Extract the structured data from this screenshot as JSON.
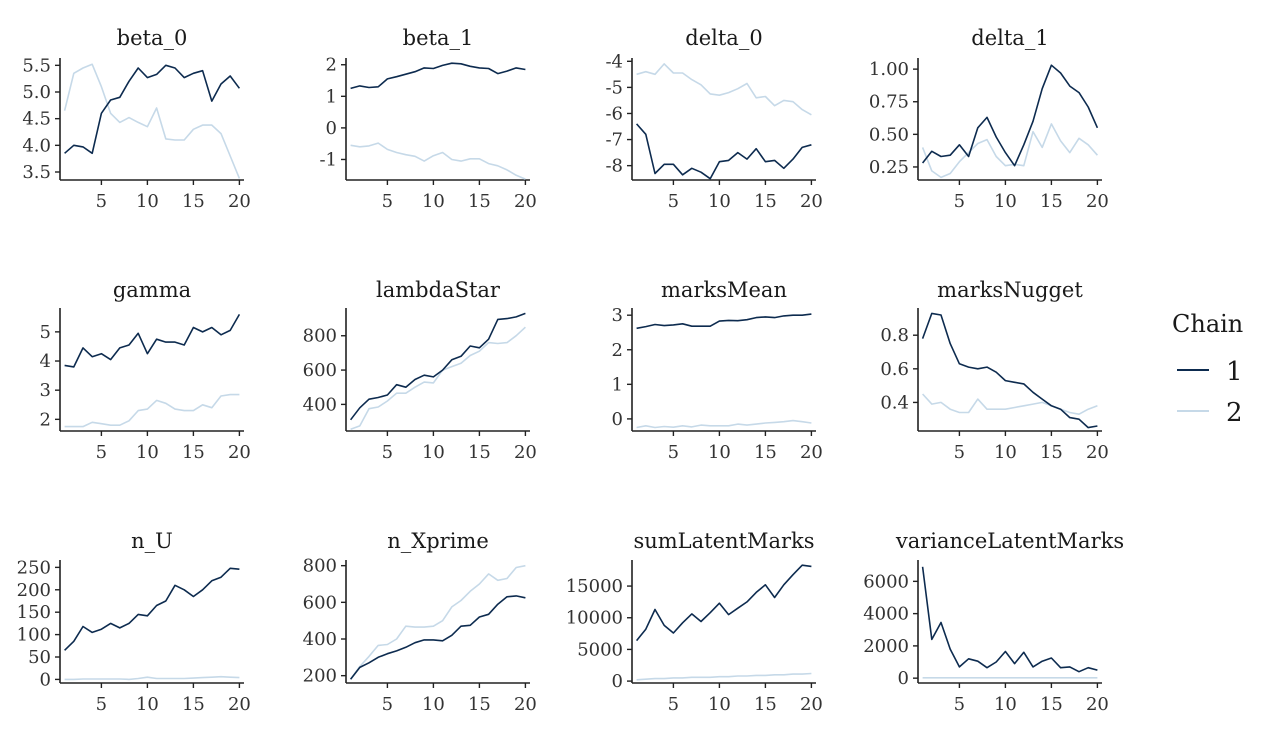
{
  "legend": {
    "title": "Chain",
    "items": [
      {
        "label": "1",
        "color": "#0d2b4f"
      },
      {
        "label": "2",
        "color": "#c6d9e8"
      }
    ]
  },
  "chart_data": [
    {
      "type": "line",
      "title": "beta_0",
      "x": [
        1,
        2,
        3,
        4,
        5,
        6,
        7,
        8,
        9,
        10,
        11,
        12,
        13,
        14,
        15,
        16,
        17,
        18,
        19,
        20
      ],
      "xticks": [
        5,
        10,
        15,
        20
      ],
      "xlim": [
        0.5,
        20.5
      ],
      "yticks": [
        3.5,
        4.0,
        4.5,
        5.0,
        5.5
      ],
      "ytick_labels": [
        "3.5",
        "4.0",
        "4.5",
        "5.0",
        "5.5"
      ],
      "ylim": [
        3.35,
        5.6
      ],
      "series": [
        {
          "name": "1",
          "values": [
            3.85,
            4.0,
            3.97,
            3.85,
            4.6,
            4.85,
            4.9,
            5.2,
            5.45,
            5.27,
            5.33,
            5.5,
            5.45,
            5.27,
            5.35,
            5.4,
            4.83,
            5.15,
            5.3,
            5.07
          ]
        },
        {
          "name": "2",
          "values": [
            4.65,
            5.35,
            5.45,
            5.52,
            5.1,
            4.6,
            4.43,
            4.52,
            4.43,
            4.35,
            4.7,
            4.12,
            4.1,
            4.1,
            4.3,
            4.38,
            4.38,
            4.22,
            3.8,
            3.38
          ]
        }
      ]
    },
    {
      "type": "line",
      "title": "beta_1",
      "x": [
        1,
        2,
        3,
        4,
        5,
        6,
        7,
        8,
        9,
        10,
        11,
        12,
        13,
        14,
        15,
        16,
        17,
        18,
        19,
        20
      ],
      "xticks": [
        5,
        10,
        15,
        20
      ],
      "xlim": [
        0.5,
        20.5
      ],
      "yticks": [
        -1,
        0,
        1,
        2
      ],
      "ytick_labels": [
        "-1",
        "0",
        "1",
        "2"
      ],
      "ylim": [
        -1.65,
        2.15
      ],
      "series": [
        {
          "name": "1",
          "values": [
            1.25,
            1.33,
            1.28,
            1.3,
            1.55,
            1.62,
            1.7,
            1.78,
            1.9,
            1.88,
            1.98,
            2.05,
            2.03,
            1.95,
            1.9,
            1.88,
            1.72,
            1.8,
            1.9,
            1.85
          ]
        },
        {
          "name": "2",
          "values": [
            -0.55,
            -0.6,
            -0.57,
            -0.48,
            -0.68,
            -0.78,
            -0.85,
            -0.9,
            -1.05,
            -0.88,
            -0.78,
            -1.0,
            -1.05,
            -0.98,
            -0.98,
            -1.13,
            -1.2,
            -1.33,
            -1.5,
            -1.62
          ]
        }
      ]
    },
    {
      "type": "line",
      "title": "delta_0",
      "x": [
        1,
        2,
        3,
        4,
        5,
        6,
        7,
        8,
        9,
        10,
        11,
        12,
        13,
        14,
        15,
        16,
        17,
        18,
        19,
        20
      ],
      "xticks": [
        5,
        10,
        15,
        20
      ],
      "xlim": [
        0.5,
        20.5
      ],
      "yticks": [
        -8,
        -7,
        -6,
        -5,
        -4
      ],
      "ytick_labels": [
        "-8",
        "-7",
        "-6",
        "-5",
        "-4"
      ],
      "ylim": [
        -8.55,
        -3.95
      ],
      "series": [
        {
          "name": "1",
          "values": [
            -6.4,
            -6.8,
            -8.3,
            -7.95,
            -7.95,
            -8.35,
            -8.1,
            -8.25,
            -8.5,
            -7.85,
            -7.8,
            -7.5,
            -7.75,
            -7.35,
            -7.85,
            -7.8,
            -8.1,
            -7.75,
            -7.3,
            -7.2
          ]
        },
        {
          "name": "2",
          "values": [
            -4.5,
            -4.4,
            -4.5,
            -4.1,
            -4.45,
            -4.45,
            -4.7,
            -4.9,
            -5.25,
            -5.3,
            -5.2,
            -5.05,
            -4.85,
            -5.4,
            -5.35,
            -5.7,
            -5.5,
            -5.55,
            -5.85,
            -6.05
          ]
        }
      ]
    },
    {
      "type": "line",
      "title": "delta_1",
      "x": [
        1,
        2,
        3,
        4,
        5,
        6,
        7,
        8,
        9,
        10,
        11,
        12,
        13,
        14,
        15,
        16,
        17,
        18,
        19,
        20
      ],
      "xticks": [
        5,
        10,
        15,
        20
      ],
      "xlim": [
        0.5,
        20.5
      ],
      "yticks": [
        0.25,
        0.5,
        0.75,
        1.0
      ],
      "ytick_labels": [
        "0.25",
        "0.50",
        "0.75",
        "1.00"
      ],
      "ylim": [
        0.15,
        1.07
      ],
      "series": [
        {
          "name": "1",
          "values": [
            0.28,
            0.37,
            0.33,
            0.34,
            0.42,
            0.33,
            0.55,
            0.63,
            0.48,
            0.36,
            0.26,
            0.42,
            0.6,
            0.85,
            1.03,
            0.97,
            0.87,
            0.82,
            0.71,
            0.55
          ]
        },
        {
          "name": "2",
          "values": [
            0.4,
            0.22,
            0.17,
            0.2,
            0.29,
            0.36,
            0.43,
            0.46,
            0.33,
            0.26,
            0.27,
            0.26,
            0.52,
            0.4,
            0.58,
            0.45,
            0.36,
            0.47,
            0.42,
            0.34
          ]
        }
      ]
    },
    {
      "type": "line",
      "title": "gamma",
      "x": [
        1,
        2,
        3,
        4,
        5,
        6,
        7,
        8,
        9,
        10,
        11,
        12,
        13,
        14,
        15,
        16,
        17,
        18,
        19,
        20
      ],
      "xticks": [
        5,
        10,
        15,
        20
      ],
      "xlim": [
        0.5,
        20.5
      ],
      "yticks": [
        2,
        3,
        4,
        5
      ],
      "ytick_labels": [
        "2",
        "3",
        "4",
        "5"
      ],
      "ylim": [
        1.6,
        5.75
      ],
      "series": [
        {
          "name": "1",
          "values": [
            3.85,
            3.8,
            4.45,
            4.15,
            4.25,
            4.05,
            4.45,
            4.55,
            4.95,
            4.25,
            4.75,
            4.65,
            4.65,
            4.55,
            5.15,
            5.0,
            5.15,
            4.9,
            5.05,
            5.6
          ]
        },
        {
          "name": "2",
          "values": [
            1.75,
            1.75,
            1.75,
            1.9,
            1.85,
            1.8,
            1.8,
            1.95,
            2.3,
            2.35,
            2.65,
            2.55,
            2.35,
            2.3,
            2.3,
            2.5,
            2.4,
            2.8,
            2.85,
            2.85
          ]
        }
      ]
    },
    {
      "type": "line",
      "title": "lambdaStar",
      "x": [
        1,
        2,
        3,
        4,
        5,
        6,
        7,
        8,
        9,
        10,
        11,
        12,
        13,
        14,
        15,
        16,
        17,
        18,
        19,
        20
      ],
      "xticks": [
        5,
        10,
        15,
        20
      ],
      "xlim": [
        0.5,
        20.5
      ],
      "yticks": [
        400,
        600,
        800
      ],
      "ytick_labels": [
        "400",
        "600",
        "800"
      ],
      "ylim": [
        245,
        950
      ],
      "series": [
        {
          "name": "1",
          "values": [
            310,
            380,
            430,
            440,
            455,
            515,
            500,
            545,
            570,
            560,
            600,
            660,
            680,
            740,
            730,
            780,
            895,
            900,
            910,
            930
          ]
        },
        {
          "name": "2",
          "values": [
            255,
            275,
            375,
            385,
            420,
            465,
            465,
            500,
            530,
            525,
            600,
            620,
            640,
            685,
            710,
            760,
            755,
            760,
            800,
            850
          ]
        }
      ]
    },
    {
      "type": "line",
      "title": "marksMean",
      "x": [
        1,
        2,
        3,
        4,
        5,
        6,
        7,
        8,
        9,
        10,
        11,
        12,
        13,
        14,
        15,
        16,
        17,
        18,
        19,
        20
      ],
      "xticks": [
        5,
        10,
        15,
        20
      ],
      "xlim": [
        0.5,
        20.5
      ],
      "yticks": [
        0,
        1,
        2,
        3
      ],
      "ytick_labels": [
        "0",
        "1",
        "2",
        "3"
      ],
      "ylim": [
        -0.35,
        3.15
      ],
      "series": [
        {
          "name": "1",
          "values": [
            2.62,
            2.67,
            2.73,
            2.7,
            2.72,
            2.75,
            2.68,
            2.68,
            2.68,
            2.83,
            2.85,
            2.84,
            2.87,
            2.93,
            2.95,
            2.93,
            2.98,
            3.0,
            3.0,
            3.03
          ]
        },
        {
          "name": "2",
          "values": [
            -0.25,
            -0.2,
            -0.25,
            -0.22,
            -0.24,
            -0.2,
            -0.23,
            -0.18,
            -0.2,
            -0.2,
            -0.2,
            -0.15,
            -0.18,
            -0.15,
            -0.12,
            -0.1,
            -0.08,
            -0.05,
            -0.08,
            -0.12
          ]
        }
      ]
    },
    {
      "type": "line",
      "title": "marksNugget",
      "x": [
        1,
        2,
        3,
        4,
        5,
        6,
        7,
        8,
        9,
        10,
        11,
        12,
        13,
        14,
        15,
        16,
        17,
        18,
        19,
        20
      ],
      "xticks": [
        5,
        10,
        15,
        20
      ],
      "xlim": [
        0.5,
        20.5
      ],
      "yticks": [
        0.4,
        0.6,
        0.8
      ],
      "ytick_labels": [
        "0.4",
        "0.6",
        "0.8"
      ],
      "ylim": [
        0.23,
        0.95
      ],
      "series": [
        {
          "name": "1",
          "values": [
            0.78,
            0.93,
            0.92,
            0.75,
            0.63,
            0.61,
            0.6,
            0.61,
            0.58,
            0.53,
            0.52,
            0.51,
            0.46,
            0.42,
            0.38,
            0.36,
            0.31,
            0.3,
            0.25,
            0.26
          ]
        },
        {
          "name": "2",
          "values": [
            0.45,
            0.39,
            0.4,
            0.36,
            0.34,
            0.34,
            0.42,
            0.36,
            0.36,
            0.36,
            0.37,
            0.38,
            0.39,
            0.4,
            0.38,
            0.36,
            0.34,
            0.33,
            0.36,
            0.38
          ]
        }
      ]
    },
    {
      "type": "line",
      "title": "n_U",
      "x": [
        1,
        2,
        3,
        4,
        5,
        6,
        7,
        8,
        9,
        10,
        11,
        12,
        13,
        14,
        15,
        16,
        17,
        18,
        19,
        20
      ],
      "xticks": [
        5,
        10,
        15,
        20
      ],
      "xlim": [
        0.5,
        20.5
      ],
      "yticks": [
        0,
        50,
        100,
        150,
        200,
        250
      ],
      "ytick_labels": [
        "0",
        "50",
        "100",
        "150",
        "200",
        "250"
      ],
      "ylim": [
        -8,
        262
      ],
      "series": [
        {
          "name": "1",
          "values": [
            65,
            85,
            118,
            105,
            112,
            125,
            115,
            125,
            145,
            142,
            165,
            175,
            210,
            200,
            185,
            200,
            220,
            228,
            248,
            246
          ]
        },
        {
          "name": "2",
          "values": [
            0,
            0,
            1,
            1,
            1,
            1,
            1,
            0,
            2,
            5,
            2,
            2,
            2,
            2,
            3,
            4,
            5,
            6,
            5,
            4
          ]
        }
      ]
    },
    {
      "type": "line",
      "title": "n_Xprime",
      "x": [
        1,
        2,
        3,
        4,
        5,
        6,
        7,
        8,
        9,
        10,
        11,
        12,
        13,
        14,
        15,
        16,
        17,
        18,
        19,
        20
      ],
      "xticks": [
        5,
        10,
        15,
        20
      ],
      "xlim": [
        0.5,
        20.5
      ],
      "yticks": [
        200,
        400,
        600,
        800
      ],
      "ytick_labels": [
        "200",
        "400",
        "600",
        "800"
      ],
      "ylim": [
        160,
        820
      ],
      "series": [
        {
          "name": "1",
          "values": [
            180,
            245,
            270,
            300,
            320,
            335,
            355,
            380,
            395,
            395,
            390,
            420,
            470,
            475,
            520,
            535,
            590,
            630,
            635,
            625
          ]
        },
        {
          "name": "2",
          "values": [
            180,
            250,
            305,
            365,
            370,
            400,
            470,
            465,
            465,
            470,
            500,
            575,
            610,
            660,
            700,
            755,
            720,
            730,
            790,
            800
          ]
        }
      ]
    },
    {
      "type": "line",
      "title": "sumLatentMarks",
      "x": [
        1,
        2,
        3,
        4,
        5,
        6,
        7,
        8,
        9,
        10,
        11,
        12,
        13,
        14,
        15,
        16,
        17,
        18,
        19,
        20
      ],
      "xticks": [
        5,
        10,
        15,
        20
      ],
      "xlim": [
        0.5,
        20.5
      ],
      "yticks": [
        0,
        5000,
        10000,
        15000
      ],
      "ytick_labels": [
        "0",
        "5000",
        "10000",
        "15000"
      ],
      "ylim": [
        -300,
        18800
      ],
      "series": [
        {
          "name": "1",
          "values": [
            6400,
            8200,
            11300,
            8800,
            7600,
            9200,
            10600,
            9400,
            10800,
            12300,
            10500,
            11500,
            12500,
            14000,
            15200,
            13200,
            15200,
            16800,
            18300,
            18100
          ]
        },
        {
          "name": "2",
          "values": [
            200,
            300,
            400,
            400,
            500,
            500,
            600,
            600,
            600,
            700,
            700,
            800,
            800,
            900,
            900,
            1000,
            1000,
            1100,
            1100,
            1200
          ]
        }
      ]
    },
    {
      "type": "line",
      "title": "varianceLatentMarks",
      "title_visible_text": "arianceLatentMar",
      "x": [
        1,
        2,
        3,
        4,
        5,
        6,
        7,
        8,
        9,
        10,
        11,
        12,
        13,
        14,
        15,
        16,
        17,
        18,
        19,
        20
      ],
      "xticks": [
        5,
        10,
        15,
        20
      ],
      "xlim": [
        0.5,
        20.5
      ],
      "yticks": [
        0,
        2000,
        4000,
        6000
      ],
      "ytick_labels": [
        "0",
        "2000",
        "4000",
        "6000"
      ],
      "ylim": [
        -300,
        7200
      ],
      "series": [
        {
          "name": "1",
          "values": [
            6900,
            2400,
            3450,
            1800,
            700,
            1200,
            1050,
            650,
            1000,
            1650,
            900,
            1600,
            700,
            1050,
            1250,
            650,
            700,
            400,
            650,
            500
          ]
        },
        {
          "name": "2",
          "values": [
            20,
            20,
            20,
            20,
            20,
            20,
            20,
            20,
            20,
            20,
            20,
            20,
            20,
            20,
            20,
            20,
            20,
            20,
            20,
            20
          ]
        }
      ]
    }
  ]
}
